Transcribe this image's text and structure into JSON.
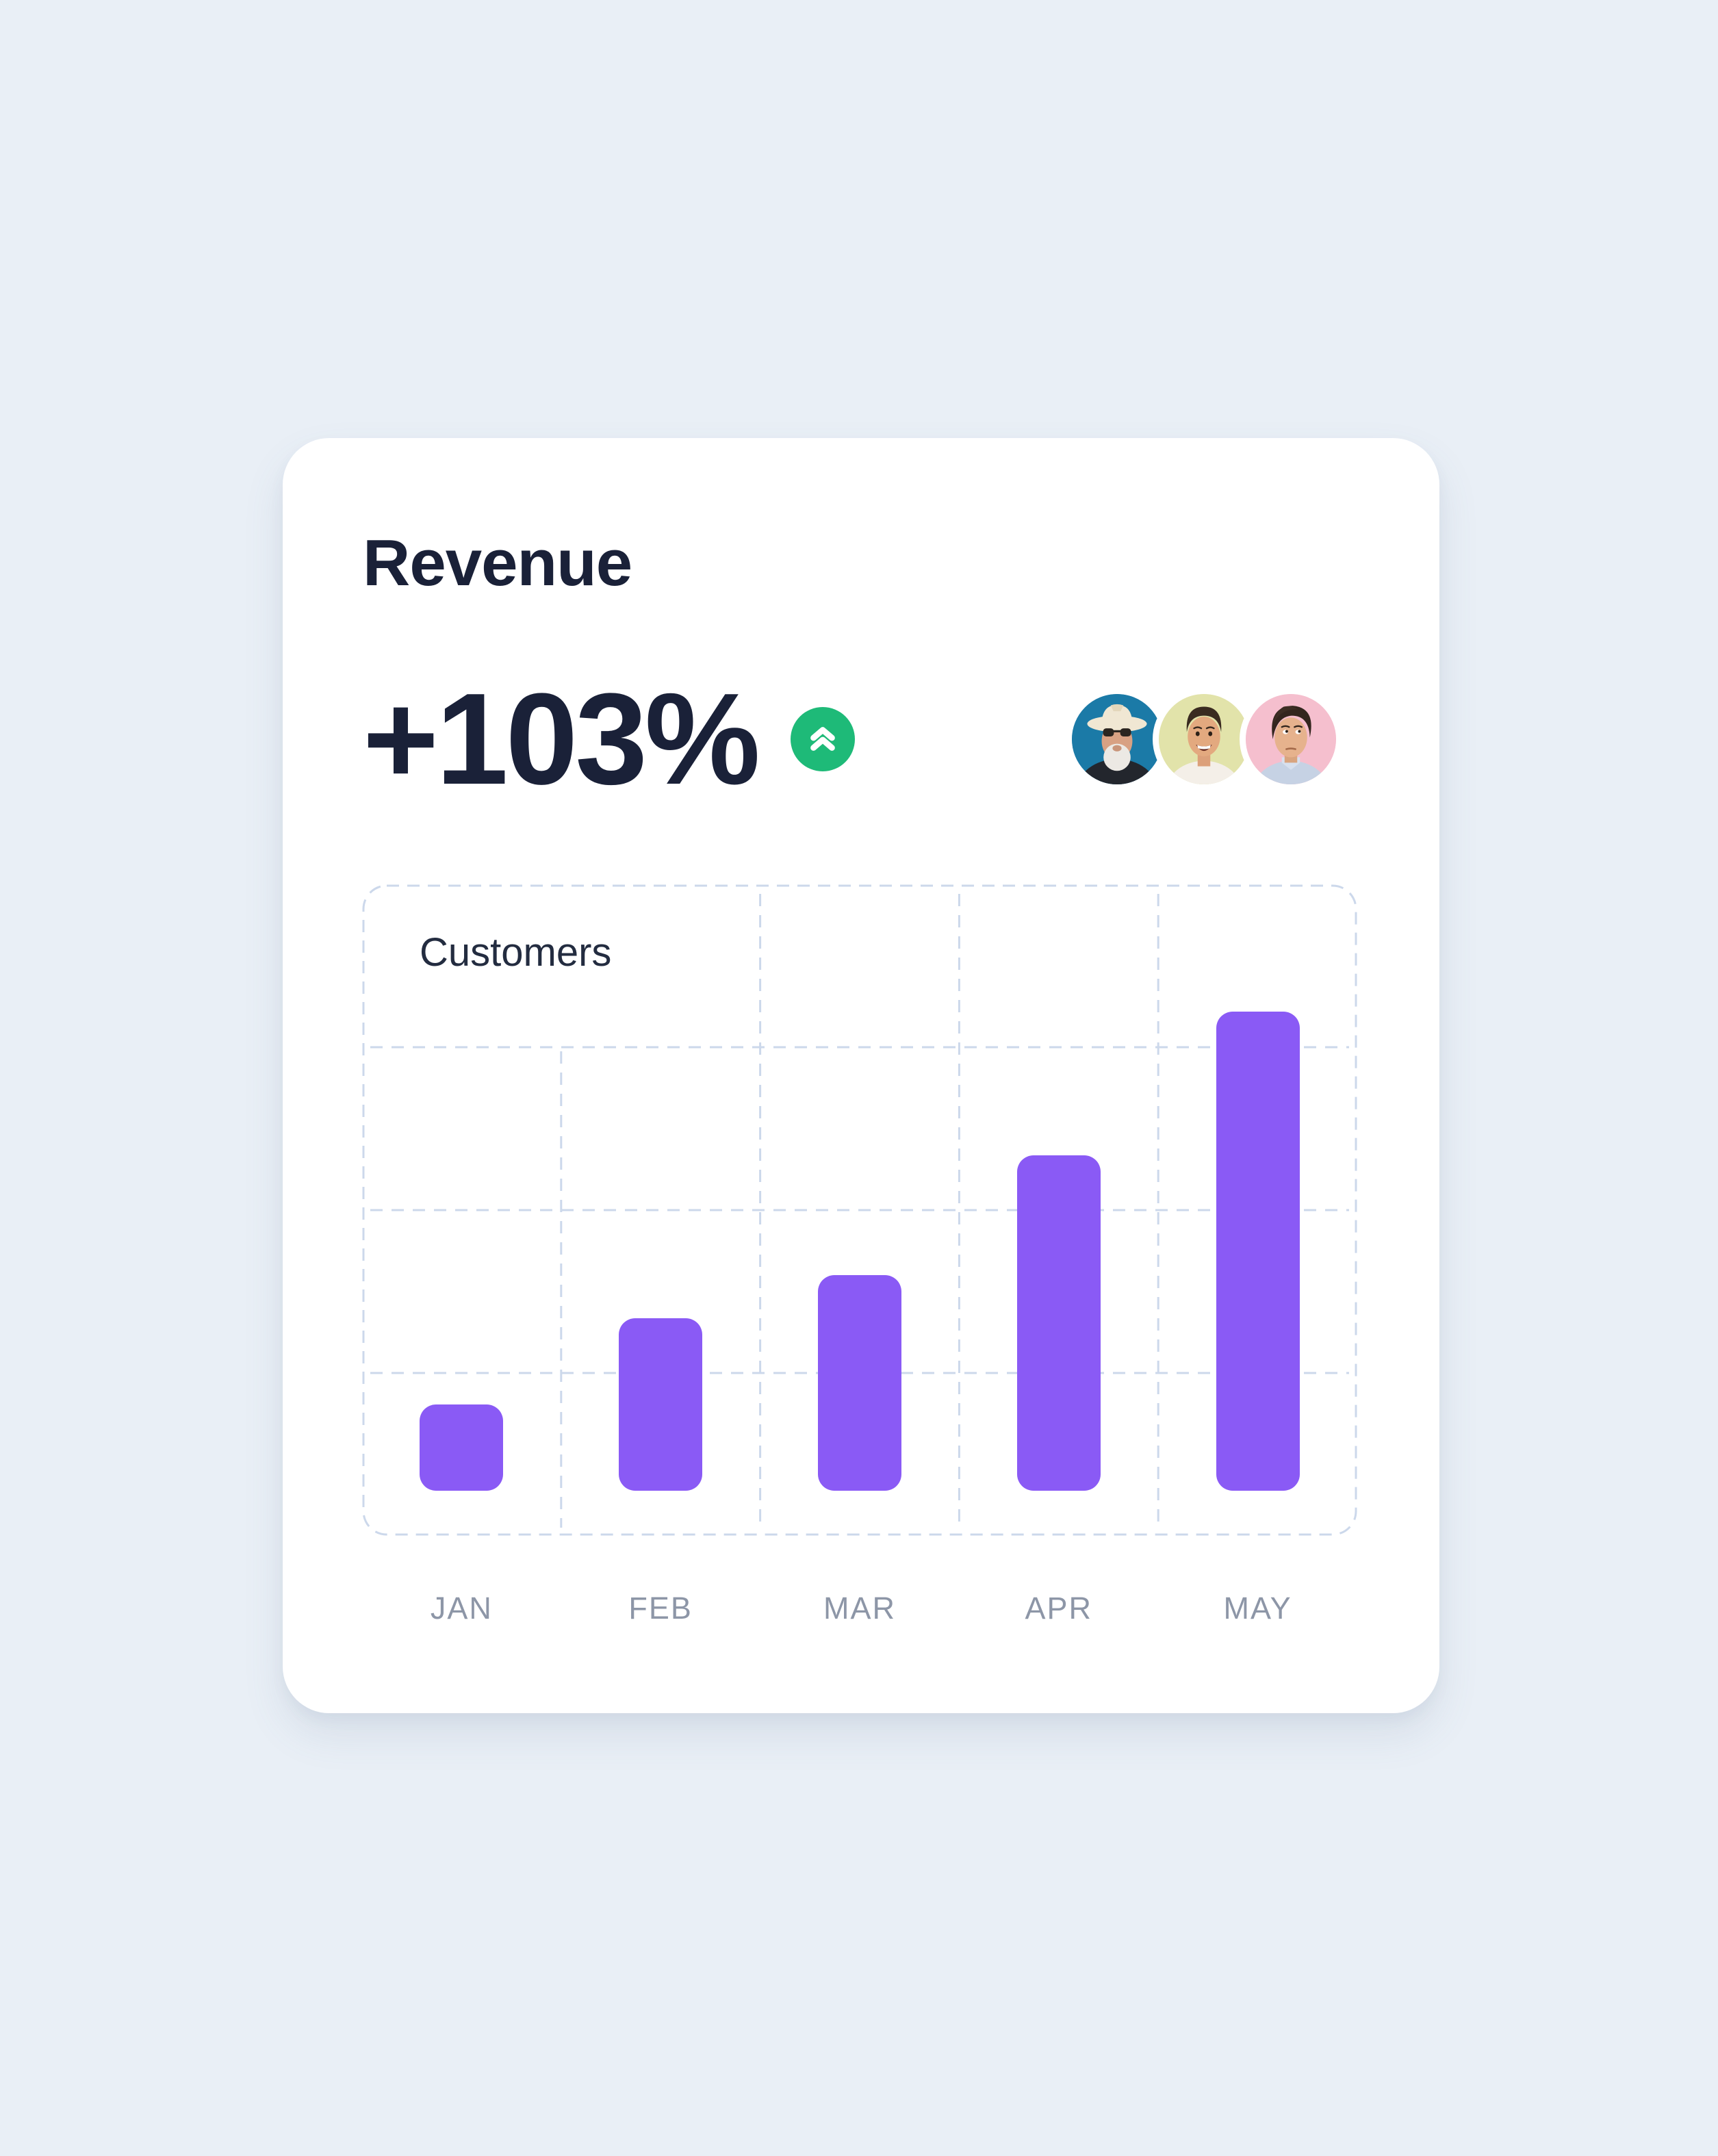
{
  "card": {
    "title": "Revenue",
    "stat": {
      "value": "+103%",
      "trend_icon": "chevrons-up-icon"
    },
    "avatars": [
      {
        "name": "man-in-cowboy-hat",
        "bg": "#1b7aa7"
      },
      {
        "name": "smiling-man",
        "bg": "#e2e3aa"
      },
      {
        "name": "man-on-pink",
        "bg": "#f5bfce"
      }
    ]
  },
  "colors": {
    "page_bg": "#e9eff6",
    "card_bg": "#ffffff",
    "navy": "#1a2138",
    "grid": "#ccd8eb",
    "label_gray": "#8d96a7",
    "accent_purple": "#8a5af5",
    "positive_green": "#1eba78"
  },
  "chart_data": {
    "type": "bar",
    "title": "Customers",
    "categories": [
      "JAN",
      "FEB",
      "MAR",
      "APR",
      "MAY"
    ],
    "values": [
      18,
      36,
      45,
      70,
      100
    ],
    "values_estimated": true,
    "ylim": [
      0,
      100
    ],
    "xlabel": "",
    "ylabel": "",
    "bar_color": "#8a5af5",
    "grid": {
      "columns": 5,
      "rows": 4,
      "style": "dashed",
      "legend": "none"
    }
  }
}
